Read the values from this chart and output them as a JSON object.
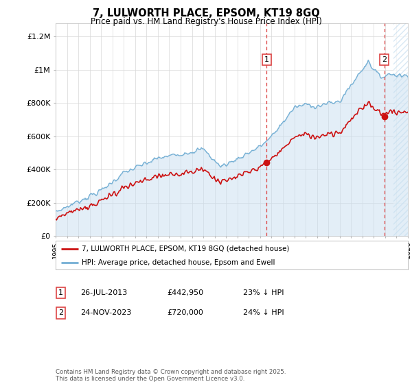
{
  "title": "7, LULWORTH PLACE, EPSOM, KT19 8GQ",
  "subtitle": "Price paid vs. HM Land Registry's House Price Index (HPI)",
  "ylabel_ticks": [
    "£0",
    "£200K",
    "£400K",
    "£600K",
    "£800K",
    "£1M",
    "£1.2M"
  ],
  "ytick_values": [
    0,
    200000,
    400000,
    600000,
    800000,
    1000000,
    1200000
  ],
  "ylim": [
    0,
    1280000
  ],
  "xlim_start": 1995.0,
  "xlim_end": 2026.0,
  "hpi_color": "#74afd4",
  "hpi_fill_color": "#c8dff0",
  "price_color": "#cc1111",
  "vline_color": "#dd4444",
  "marker1_x": 2013.57,
  "marker2_x": 2023.92,
  "marker1_y": 442950,
  "marker2_y": 720000,
  "legend_line1": "7, LULWORTH PLACE, EPSOM, KT19 8GQ (detached house)",
  "legend_line2": "HPI: Average price, detached house, Epsom and Ewell",
  "table_row1": [
    "1",
    "26-JUL-2013",
    "£442,950",
    "23% ↓ HPI"
  ],
  "table_row2": [
    "2",
    "24-NOV-2023",
    "£720,000",
    "24% ↓ HPI"
  ],
  "footer": "Contains HM Land Registry data © Crown copyright and database right 2025.\nThis data is licensed under the Open Government Licence v3.0.",
  "background_color": "#ffffff",
  "grid_color": "#d8d8d8",
  "hatch_color": "#c8dff0"
}
